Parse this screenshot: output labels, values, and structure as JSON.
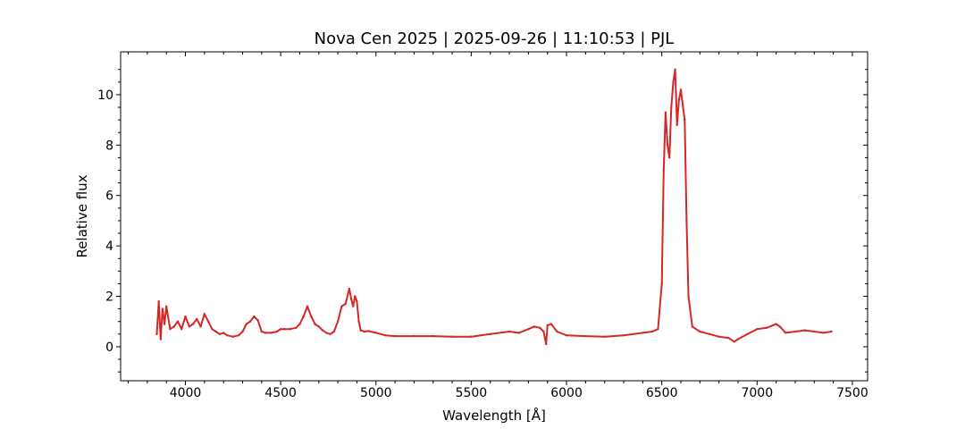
{
  "chart_data": {
    "type": "line",
    "title": "Nova Cen 2025 | 2025-09-26 | 11:10:53 | PJL",
    "xlabel": "Wavelength [Å]",
    "ylabel": "Relative flux",
    "xlim": [
      3660,
      7580
    ],
    "ylim": [
      -1.35,
      11.7
    ],
    "x_ticks": [
      4000,
      4500,
      5000,
      5500,
      6000,
      6500,
      7000,
      7500
    ],
    "y_ticks": [
      0,
      2,
      4,
      6,
      8,
      10
    ],
    "grid": false,
    "legend": "none",
    "series": [
      {
        "color": "#d62728",
        "x": [
          3850,
          3860,
          3870,
          3880,
          3890,
          3900,
          3920,
          3940,
          3960,
          3980,
          4000,
          4020,
          4040,
          4060,
          4080,
          4100,
          4120,
          4140,
          4160,
          4180,
          4200,
          4220,
          4250,
          4280,
          4300,
          4320,
          4340,
          4360,
          4380,
          4400,
          4420,
          4450,
          4480,
          4500,
          4520,
          4550,
          4580,
          4600,
          4620,
          4640,
          4660,
          4680,
          4700,
          4720,
          4740,
          4760,
          4780,
          4800,
          4820,
          4840,
          4860,
          4870,
          4880,
          4890,
          4900,
          4910,
          4920,
          4940,
          4960,
          5000,
          5050,
          5100,
          5200,
          5300,
          5400,
          5500,
          5600,
          5700,
          5750,
          5800,
          5830,
          5860,
          5880,
          5893,
          5900,
          5920,
          5950,
          6000,
          6100,
          6200,
          6300,
          6400,
          6450,
          6480,
          6500,
          6510,
          6520,
          6530,
          6540,
          6550,
          6560,
          6570,
          6580,
          6590,
          6600,
          6610,
          6620,
          6630,
          6640,
          6660,
          6700,
          6750,
          6800,
          6850,
          6880,
          6900,
          6950,
          7000,
          7050,
          7100,
          7120,
          7150,
          7200,
          7250,
          7300,
          7350,
          7390
        ],
        "y": [
          0.5,
          1.8,
          0.3,
          1.5,
          0.9,
          1.6,
          0.7,
          0.8,
          1.0,
          0.7,
          1.2,
          0.8,
          0.9,
          1.1,
          0.8,
          1.3,
          1.0,
          0.7,
          0.6,
          0.5,
          0.55,
          0.45,
          0.4,
          0.45,
          0.6,
          0.9,
          1.0,
          1.2,
          1.05,
          0.6,
          0.55,
          0.55,
          0.6,
          0.7,
          0.7,
          0.7,
          0.75,
          0.9,
          1.2,
          1.6,
          1.2,
          0.9,
          0.8,
          0.65,
          0.55,
          0.5,
          0.6,
          1.0,
          1.6,
          1.7,
          2.3,
          1.9,
          1.6,
          2.0,
          1.8,
          1.0,
          0.65,
          0.6,
          0.62,
          0.55,
          0.45,
          0.42,
          0.42,
          0.42,
          0.4,
          0.4,
          0.5,
          0.6,
          0.55,
          0.7,
          0.8,
          0.75,
          0.6,
          0.1,
          0.85,
          0.9,
          0.6,
          0.45,
          0.42,
          0.4,
          0.45,
          0.55,
          0.6,
          0.7,
          2.5,
          7.0,
          9.3,
          8.0,
          7.5,
          9.5,
          10.5,
          11.0,
          8.8,
          9.8,
          10.2,
          9.6,
          9.0,
          5.0,
          2.0,
          0.8,
          0.6,
          0.5,
          0.4,
          0.35,
          0.2,
          0.3,
          0.5,
          0.7,
          0.75,
          0.9,
          0.8,
          0.55,
          0.6,
          0.65,
          0.6,
          0.55,
          0.6
        ]
      }
    ]
  }
}
